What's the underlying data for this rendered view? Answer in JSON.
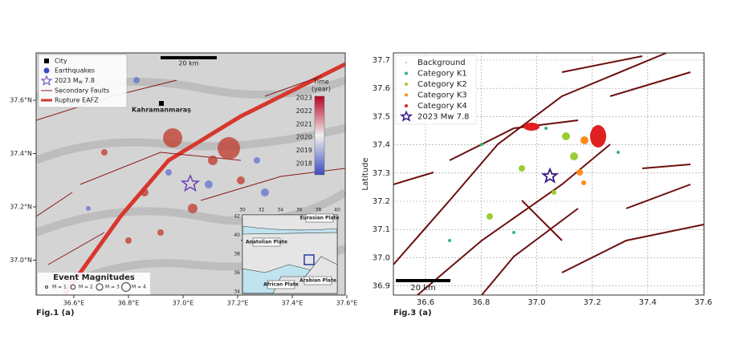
{
  "fig1": {
    "caption": "Fig.1 (a)",
    "xticks": [
      "36.6°E",
      "36.8°E",
      "37.0°E",
      "37.2°E",
      "37.4°E",
      "37.6°E"
    ],
    "yticks": [
      "37.6°N",
      "37.4°N",
      "37.2°N",
      "37.0°N"
    ],
    "legend": {
      "city": "City",
      "earthquakes": "Earthquakes",
      "mainshock": {
        "pre": "2023 M",
        "sub": "w",
        "post": " 7.8"
      },
      "secondary": "Secondary Faults",
      "rupture": "Rupture EAFZ"
    },
    "scalebar": "20 km",
    "city_label": "Kahramanmaraş",
    "colorbar": {
      "title": [
        "Time",
        "(year)"
      ],
      "ticks": [
        "2023",
        "2022",
        "2021",
        "2020",
        "2019",
        "2018"
      ]
    },
    "magnitudes": {
      "title": "Event Magnitudes",
      "items": [
        "M = 1",
        "M = 2",
        "M = 3",
        "M = 4"
      ]
    },
    "inset": {
      "xticks": [
        "30",
        "32",
        "34",
        "36",
        "38",
        "40"
      ],
      "yticks": [
        "42",
        "40",
        "38",
        "36",
        "34"
      ],
      "plates": [
        "Eurasian Plate",
        "Anatolian Plate",
        "African Plate",
        "Arabian Plate"
      ]
    }
  },
  "fig3": {
    "caption": "Fig.3 (a)",
    "ylabel": "Latitude",
    "xticks": [
      "36.6",
      "36.8",
      "37.0",
      "37.2",
      "37.4",
      "37.6"
    ],
    "yticks": [
      "37.7",
      "37.6",
      "37.5",
      "37.4",
      "37.3",
      "37.2",
      "37.1",
      "37.0",
      "36.9"
    ],
    "legend": [
      "Background",
      "Category K1",
      "Category K2",
      "Category K3",
      "Category K4",
      "2023 Mw 7.8"
    ],
    "scalebar": "20 km"
  }
}
